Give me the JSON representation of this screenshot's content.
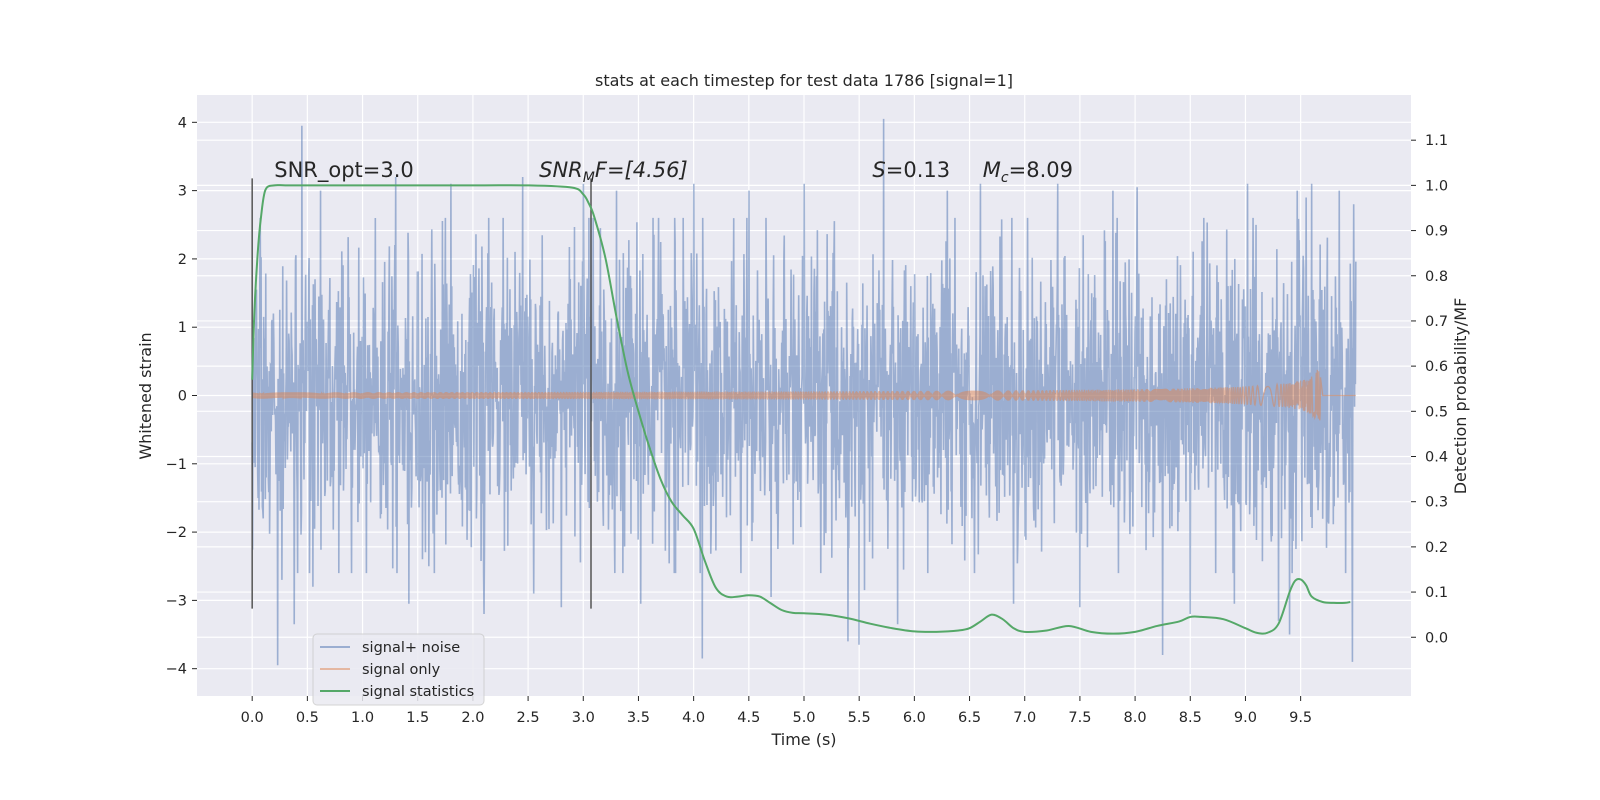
{
  "chart_data": {
    "type": "line",
    "title": "stats at each timestep for test data 1786 [signal=1]",
    "xlabel": "Time (s)",
    "ylabel": "Whitened strain",
    "y2label": "Detection probability/MF",
    "xlim": [
      -0.5,
      10.5
    ],
    "ylim": [
      -4.4,
      4.4
    ],
    "y2lim": [
      -0.13,
      1.2
    ],
    "xticks": [
      0.0,
      0.5,
      1.0,
      1.5,
      2.0,
      2.5,
      3.0,
      3.5,
      4.0,
      4.5,
      5.0,
      5.5,
      6.0,
      6.5,
      7.0,
      7.5,
      8.0,
      8.5,
      9.0,
      9.5
    ],
    "yticks": [
      -4,
      -3,
      -2,
      -1,
      0,
      1,
      2,
      3,
      4
    ],
    "y2ticks": [
      0.0,
      0.1,
      0.2,
      0.3,
      0.4,
      0.5,
      0.6,
      0.7,
      0.8,
      0.9,
      1.0,
      1.1
    ],
    "grid": true,
    "legend_position": "bottom-left",
    "series": [
      {
        "name": "signal+ noise",
        "color": "#4c72b0",
        "kind": "noise",
        "x_range": [
          0.0,
          10.0
        ],
        "spikes": [
          [
            0.04,
            1.55
          ],
          [
            0.1,
            -1.8
          ],
          [
            0.27,
            -2.7
          ],
          [
            0.45,
            3.95
          ],
          [
            0.38,
            3.6
          ],
          [
            0.23,
            -3.95
          ],
          [
            0.38,
            -3.35
          ],
          [
            0.62,
            3.0
          ],
          [
            0.55,
            -2.8
          ],
          [
            1.3,
            3.2
          ],
          [
            1.42,
            -3.05
          ],
          [
            1.8,
            3.1
          ],
          [
            1.65,
            -2.6
          ],
          [
            2.1,
            -3.2
          ],
          [
            2.45,
            3.2
          ],
          [
            2.55,
            -2.9
          ],
          [
            2.8,
            -3.1
          ],
          [
            3.0,
            3.1
          ],
          [
            3.3,
            3.0
          ],
          [
            3.52,
            -3.05
          ],
          [
            4.0,
            3.1
          ],
          [
            4.08,
            -3.85
          ],
          [
            4.5,
            3.0
          ],
          [
            4.7,
            -2.95
          ],
          [
            5.0,
            3.1
          ],
          [
            5.4,
            -3.6
          ],
          [
            5.5,
            -3.65
          ],
          [
            5.55,
            -2.85
          ],
          [
            5.72,
            4.05
          ],
          [
            5.85,
            -3.35
          ],
          [
            6.3,
            3.0
          ],
          [
            6.6,
            3.1
          ],
          [
            6.9,
            -3.05
          ],
          [
            7.3,
            3.1
          ],
          [
            7.5,
            -3.1
          ],
          [
            7.8,
            3.0
          ],
          [
            8.02,
            3.05
          ],
          [
            8.25,
            -3.8
          ],
          [
            8.5,
            -3.2
          ],
          [
            8.9,
            -3.05
          ],
          [
            9.02,
            3.1
          ],
          [
            9.3,
            -3.3
          ],
          [
            9.4,
            -3.5
          ],
          [
            9.47,
            3.0
          ],
          [
            9.55,
            2.9
          ],
          [
            9.6,
            3.1
          ],
          [
            9.85,
            3.0
          ],
          [
            9.98,
            2.8
          ],
          [
            9.97,
            -3.9
          ]
        ]
      },
      {
        "name": "signal only",
        "color": "#dd8452",
        "kind": "chirp",
        "x_range": [
          0.0,
          9.68
        ],
        "peak_amplitude": 0.38
      },
      {
        "name": "signal statistics",
        "color": "#55a868",
        "axis": "right",
        "x": [
          0.0,
          0.02,
          0.05,
          0.08,
          0.12,
          0.2,
          0.3,
          0.5,
          1.0,
          2.0,
          2.5,
          2.9,
          3.0,
          3.05,
          3.1,
          3.2,
          3.3,
          3.4,
          3.5,
          3.6,
          3.7,
          3.8,
          3.9,
          4.0,
          4.1,
          4.2,
          4.3,
          4.4,
          4.5,
          4.6,
          4.7,
          4.8,
          4.9,
          5.0,
          5.2,
          5.4,
          5.6,
          5.8,
          6.0,
          6.2,
          6.4,
          6.5,
          6.6,
          6.7,
          6.8,
          6.9,
          7.0,
          7.2,
          7.4,
          7.6,
          7.8,
          8.0,
          8.2,
          8.4,
          8.5,
          8.6,
          8.8,
          9.0,
          9.1,
          9.2,
          9.3,
          9.4,
          9.45,
          9.5,
          9.55,
          9.6,
          9.7,
          9.8,
          9.9,
          9.95
        ],
        "y": [
          0.57,
          0.72,
          0.85,
          0.93,
          0.99,
          1.0,
          1.0,
          1.0,
          1.0,
          1.0,
          1.0,
          0.995,
          0.98,
          0.96,
          0.93,
          0.84,
          0.71,
          0.59,
          0.5,
          0.42,
          0.35,
          0.3,
          0.27,
          0.24,
          0.17,
          0.11,
          0.09,
          0.09,
          0.093,
          0.09,
          0.075,
          0.06,
          0.054,
          0.053,
          0.05,
          0.042,
          0.03,
          0.02,
          0.013,
          0.012,
          0.015,
          0.02,
          0.035,
          0.05,
          0.04,
          0.02,
          0.012,
          0.015,
          0.025,
          0.012,
          0.008,
          0.012,
          0.025,
          0.035,
          0.045,
          0.045,
          0.04,
          0.02,
          0.01,
          0.01,
          0.03,
          0.1,
          0.125,
          0.128,
          0.115,
          0.09,
          0.078,
          0.076,
          0.076,
          0.078
        ]
      }
    ],
    "vlines": [
      0.0,
      3.07
    ],
    "annotations": [
      {
        "text": "SNR_opt=3.0",
        "x": 0.2,
        "y": 3.2
      },
      {
        "text": "SNR_MF=[4.56]",
        "x": 2.6,
        "y": 3.2,
        "math": "SNR",
        "sub": "M",
        "rest": "F=[4.56]"
      },
      {
        "text": "S=0.13",
        "x": 5.62,
        "y": 3.2,
        "math": "S",
        "rest": "=0.13"
      },
      {
        "text": "M_c=8.09",
        "x": 6.62,
        "y": 3.2,
        "math": "M",
        "sub": "c",
        "rest": "=8.09"
      }
    ]
  }
}
